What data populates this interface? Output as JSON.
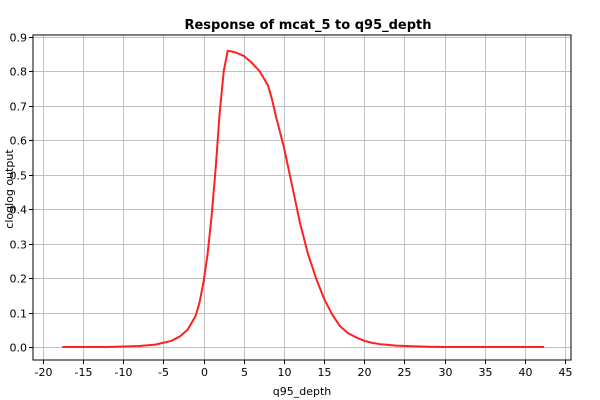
{
  "chart_data": {
    "type": "line",
    "title": "Response of mcat_5 to q95_depth",
    "xlabel": "q95_depth",
    "ylabel": "cloglog output",
    "xlim": [
      -20,
      45
    ],
    "ylim": [
      0,
      0.9
    ],
    "xticks": [
      -20,
      -15,
      -10,
      -5,
      0,
      5,
      10,
      15,
      20,
      25,
      30,
      35,
      40,
      45
    ],
    "yticks": [
      0.0,
      0.1,
      0.2,
      0.3,
      0.4,
      0.5,
      0.6,
      0.7,
      0.8,
      0.9
    ],
    "grid": true,
    "series": [
      {
        "color": "#ff2020",
        "x": [
          -17.5,
          -12,
          -8,
          -6,
          -4,
          -3,
          -2,
          -1,
          -0.5,
          0,
          0.5,
          1,
          1.5,
          2,
          2.5,
          3,
          3.5,
          4,
          5,
          6,
          7,
          8,
          8.5,
          9,
          10,
          11,
          12,
          13,
          14,
          15,
          16,
          17,
          18,
          19,
          20,
          21,
          22,
          24,
          26,
          28,
          30,
          35,
          40,
          42.3
        ],
        "y": [
          0.0,
          0.0,
          0.003,
          0.007,
          0.018,
          0.03,
          0.05,
          0.09,
          0.13,
          0.19,
          0.27,
          0.38,
          0.52,
          0.68,
          0.8,
          0.86,
          0.858,
          0.855,
          0.845,
          0.825,
          0.8,
          0.76,
          0.72,
          0.67,
          0.58,
          0.47,
          0.36,
          0.27,
          0.2,
          0.14,
          0.095,
          0.06,
          0.04,
          0.028,
          0.018,
          0.012,
          0.008,
          0.004,
          0.002,
          0.001,
          0.0,
          0.0,
          0.0,
          0.0
        ]
      }
    ]
  }
}
